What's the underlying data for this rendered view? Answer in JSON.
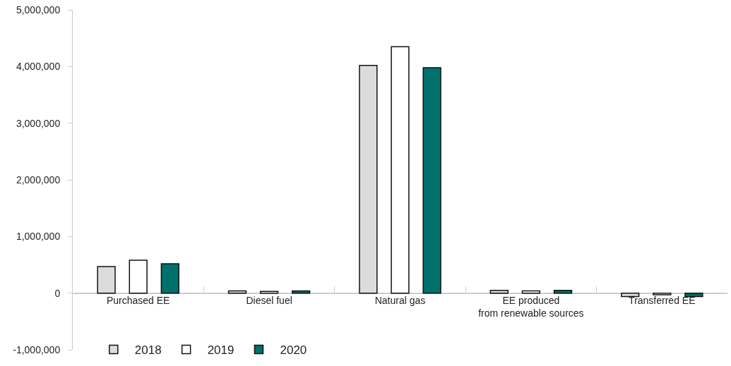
{
  "chart_data": {
    "type": "bar",
    "categories": [
      "Purchased EE",
      "Diesel fuel",
      "Natural gas",
      "EE produced\nfrom renewable sources",
      "Transferred EE"
    ],
    "series": [
      {
        "name": "2018",
        "color": "#dcdcdc",
        "values": [
          470000,
          40000,
          4020000,
          50000,
          -60000
        ]
      },
      {
        "name": "2019",
        "color": "#ffffff",
        "values": [
          580000,
          30000,
          4350000,
          40000,
          -30000
        ]
      },
      {
        "name": "2020",
        "color": "#00706b",
        "values": [
          520000,
          40000,
          3980000,
          50000,
          -60000
        ]
      }
    ],
    "ylim": [
      -1000000,
      5000000
    ],
    "yticks": [
      {
        "value": -1000000,
        "label": "-1,000,000"
      },
      {
        "value": 0,
        "label": "0"
      },
      {
        "value": 1000000,
        "label": "1,000,000"
      },
      {
        "value": 2000000,
        "label": "2,000,000"
      },
      {
        "value": 3000000,
        "label": "3,000,000"
      },
      {
        "value": 4000000,
        "label": "4,000,000"
      },
      {
        "value": 5000000,
        "label": "5,000,000"
      }
    ],
    "grid": false,
    "legend": "bottom left"
  }
}
